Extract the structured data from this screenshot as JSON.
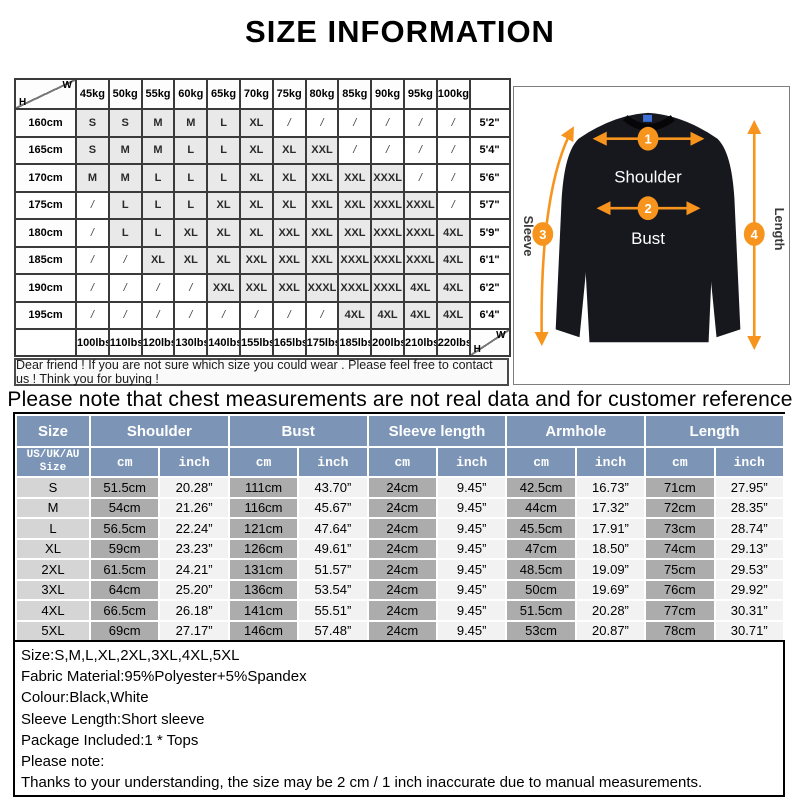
{
  "title": "SIZE INFORMATION",
  "colors": {
    "header_blue": "#7c95b6",
    "cm_column_gray": "#acacac",
    "inch_column_light": "#f2f2f2",
    "size_column_gray": "#d5d5d5",
    "matrix_cell_shaded": "#e9e9e9",
    "arrow_orange": "#f7941d",
    "shirt_black": "#17171e"
  },
  "size_matrix": {
    "corner_w": "W",
    "corner_h": "H",
    "weight_headers": [
      "45kg",
      "50kg",
      "55kg",
      "60kg",
      "65kg",
      "70kg",
      "75kg",
      "80kg",
      "85kg",
      "90kg",
      "95kg",
      "100kg"
    ],
    "lbs_footers": [
      "100lbs",
      "110lbs",
      "120lbs",
      "130lbs",
      "140lbs",
      "155lbs",
      "165lbs",
      "175lbs",
      "185lbs",
      "200lbs",
      "210lbs",
      "220lbs"
    ],
    "rows": [
      {
        "height": "160cm",
        "feet": "5'2\"",
        "cells": [
          "S",
          "S",
          "M",
          "M",
          "L",
          "XL",
          "/",
          "/",
          "/",
          "/",
          "/",
          "/"
        ]
      },
      {
        "height": "165cm",
        "feet": "5'4\"",
        "cells": [
          "S",
          "M",
          "M",
          "L",
          "L",
          "XL",
          "XL",
          "XXL",
          "/",
          "/",
          "/",
          "/"
        ]
      },
      {
        "height": "170cm",
        "feet": "5'6\"",
        "cells": [
          "M",
          "M",
          "L",
          "L",
          "L",
          "XL",
          "XL",
          "XXL",
          "XXL",
          "XXXL",
          "/",
          "/"
        ]
      },
      {
        "height": "175cm",
        "feet": "5'7\"",
        "cells": [
          "/",
          "L",
          "L",
          "L",
          "XL",
          "XL",
          "XL",
          "XXL",
          "XXL",
          "XXXL",
          "XXXL",
          "/"
        ]
      },
      {
        "height": "180cm",
        "feet": "5'9\"",
        "cells": [
          "/",
          "L",
          "L",
          "XL",
          "XL",
          "XL",
          "XXL",
          "XXL",
          "XXL",
          "XXXL",
          "XXXL",
          "4XL"
        ]
      },
      {
        "height": "185cm",
        "feet": "6'1\"",
        "cells": [
          "/",
          "/",
          "XL",
          "XL",
          "XL",
          "XXL",
          "XXL",
          "XXL",
          "XXXL",
          "XXXL",
          "XXXL",
          "4XL"
        ]
      },
      {
        "height": "190cm",
        "feet": "6'2\"",
        "cells": [
          "/",
          "/",
          "/",
          "/",
          "XXL",
          "XXL",
          "XXL",
          "XXXL",
          "XXXL",
          "XXXL",
          "4XL",
          "4XL"
        ]
      },
      {
        "height": "195cm",
        "feet": "6'4\"",
        "cells": [
          "/",
          "/",
          "/",
          "/",
          "/",
          "/",
          "/",
          "/",
          "4XL",
          "4XL",
          "4XL",
          "4XL"
        ]
      }
    ]
  },
  "friend_note": "Dear friend ! If you are not sure which size you could wear . Please feel free to contact us ! Think you for buying !",
  "chest_note": "Please note that chest measurements  are not real data and for customer reference only.",
  "diagram": {
    "label_shoulder": "Shoulder",
    "label_bust": "Bust",
    "label_sleeve": "Sleeve",
    "label_length": "Length",
    "n1": "1",
    "n2": "2",
    "n3": "3",
    "n4": "4"
  },
  "measure_table": {
    "headers": [
      "Size",
      "Shoulder",
      "Bust",
      "Sleeve length",
      "Armhole",
      "Length"
    ],
    "subheader_line1": "US/UK/AU",
    "subheader_line2": "Size",
    "unit_cm": "cm",
    "unit_inch": "inch",
    "rows": [
      {
        "size": "S",
        "values": [
          "51.5cm",
          "20.28”",
          "111cm",
          "43.70”",
          "24cm",
          "9.45”",
          "42.5cm",
          "16.73”",
          "71cm",
          "27.95”"
        ]
      },
      {
        "size": "M",
        "values": [
          "54cm",
          "21.26”",
          "116cm",
          "45.67”",
          "24cm",
          "9.45”",
          "44cm",
          "17.32”",
          "72cm",
          "28.35”"
        ]
      },
      {
        "size": "L",
        "values": [
          "56.5cm",
          "22.24”",
          "121cm",
          "47.64”",
          "24cm",
          "9.45”",
          "45.5cm",
          "17.91”",
          "73cm",
          "28.74”"
        ]
      },
      {
        "size": "XL",
        "values": [
          "59cm",
          "23.23”",
          "126cm",
          "49.61”",
          "24cm",
          "9.45”",
          "47cm",
          "18.50”",
          "74cm",
          "29.13”"
        ]
      },
      {
        "size": "2XL",
        "values": [
          "61.5cm",
          "24.21”",
          "131cm",
          "51.57”",
          "24cm",
          "9.45”",
          "48.5cm",
          "19.09”",
          "75cm",
          "29.53”"
        ]
      },
      {
        "size": "3XL",
        "values": [
          "64cm",
          "25.20”",
          "136cm",
          "53.54”",
          "24cm",
          "9.45”",
          "50cm",
          "19.69”",
          "76cm",
          "29.92”"
        ]
      },
      {
        "size": "4XL",
        "values": [
          "66.5cm",
          "26.18”",
          "141cm",
          "55.51”",
          "24cm",
          "9.45”",
          "51.5cm",
          "20.28”",
          "77cm",
          "30.31”"
        ]
      },
      {
        "size": "5XL",
        "values": [
          "69cm",
          "27.17”",
          "146cm",
          "57.48”",
          "24cm",
          "9.45”",
          "53cm",
          "20.87”",
          "78cm",
          "30.71”"
        ]
      }
    ]
  },
  "details": [
    "Size:S,M,L,XL,2XL,3XL,4XL,5XL",
    "Fabric Material:95%Polyester+5%Spandex",
    "Colour:Black,White",
    "Sleeve Length:Short sleeve",
    "Package Included:1 * Tops",
    "Please note:",
    "Thanks to your understanding, the size may be 2 cm / 1 inch inaccurate due to manual measurements."
  ]
}
